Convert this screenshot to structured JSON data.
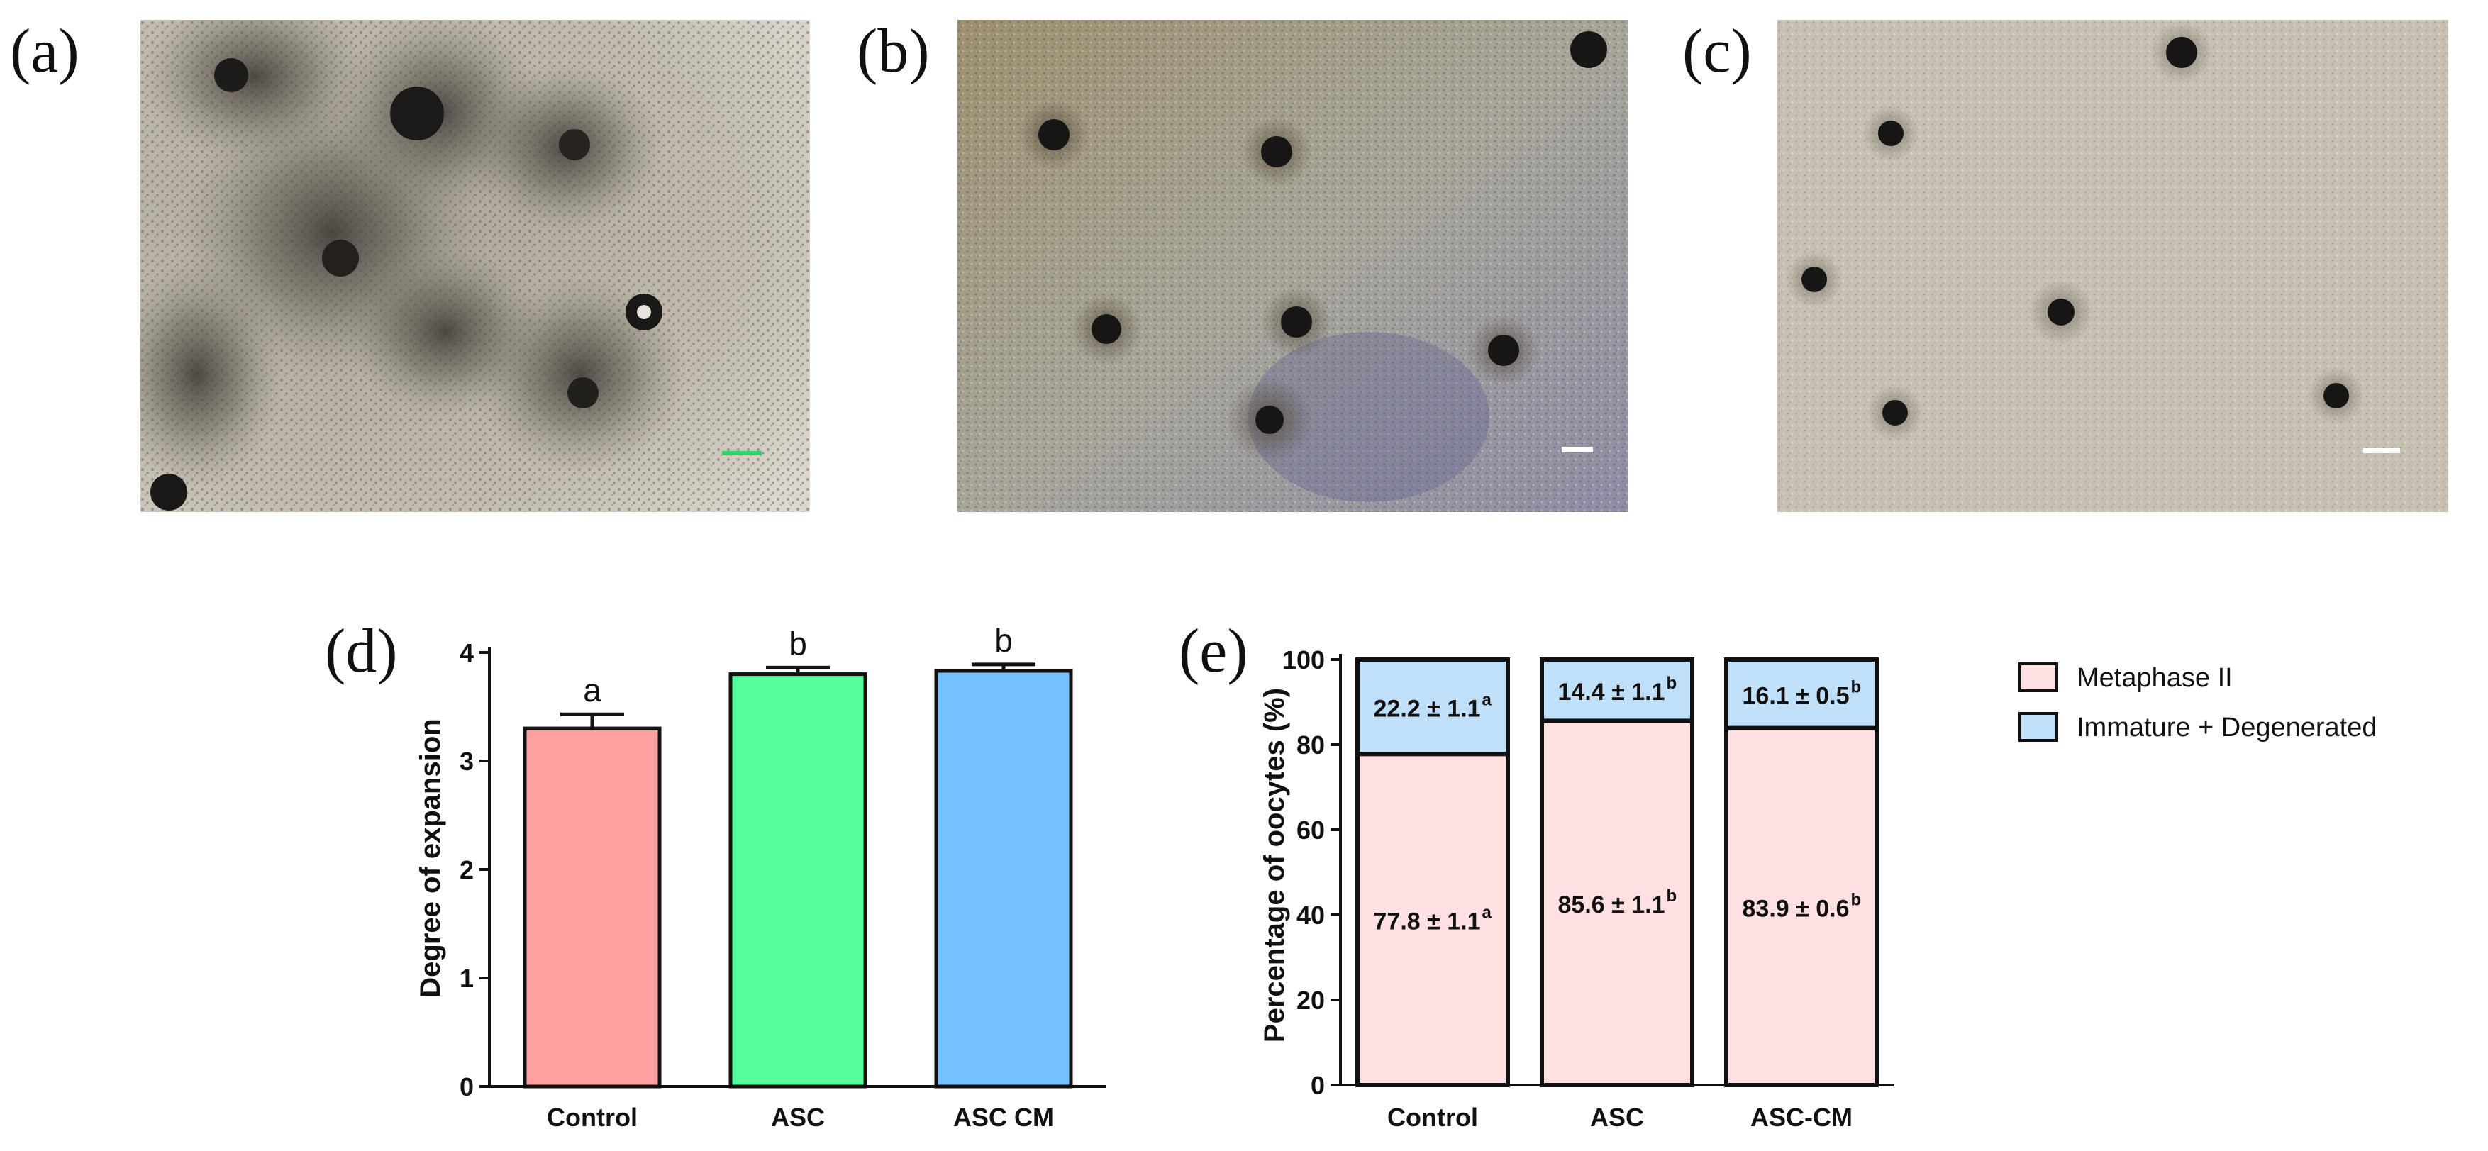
{
  "panels": {
    "a": "(a)",
    "b": "(b)",
    "c": "(c)",
    "d": "(d)",
    "e": "(e)"
  },
  "chart_data": [
    {
      "type": "bar",
      "ylabel": "Degree of expansion",
      "categories": [
        "Control",
        "ASC",
        "ASC CM"
      ],
      "values": [
        3.3,
        3.8,
        3.83
      ],
      "errors": [
        0.13,
        0.06,
        0.06
      ],
      "significance": [
        "a",
        "b",
        "b"
      ],
      "colors": [
        "#ffa0a0",
        "#55ff99",
        "#77c0ff"
      ],
      "ylim": [
        0,
        4
      ],
      "yticks": [
        "0",
        "1",
        "2",
        "3",
        "4"
      ]
    },
    {
      "type": "bar",
      "stacked": true,
      "ylabel": "Percentage of oocytes (%)",
      "categories": [
        "Control",
        "ASC",
        "ASC-CM"
      ],
      "ylim": [
        0,
        100
      ],
      "yticks": [
        "0",
        "20",
        "40",
        "60",
        "80",
        "100"
      ],
      "legend_position": "right",
      "series": [
        {
          "name": "Metaphase II",
          "color": "#ffe0e0",
          "values": [
            77.8,
            85.6,
            83.9
          ],
          "labels": [
            "77.8 ±  1.1",
            "85.6 ± 1.1",
            "83.9 ± 0.6"
          ],
          "superscripts": [
            "a",
            "b",
            "b"
          ]
        },
        {
          "name": "Immature + Degenerated",
          "color": "#bfe0f8",
          "values": [
            22.2,
            14.4,
            16.1
          ],
          "labels": [
            "22.2 ± 1.1",
            "14.4 ± 1.1",
            "16.1 ± 0.5"
          ],
          "superscripts": [
            "a",
            "b",
            "b"
          ]
        }
      ]
    }
  ]
}
